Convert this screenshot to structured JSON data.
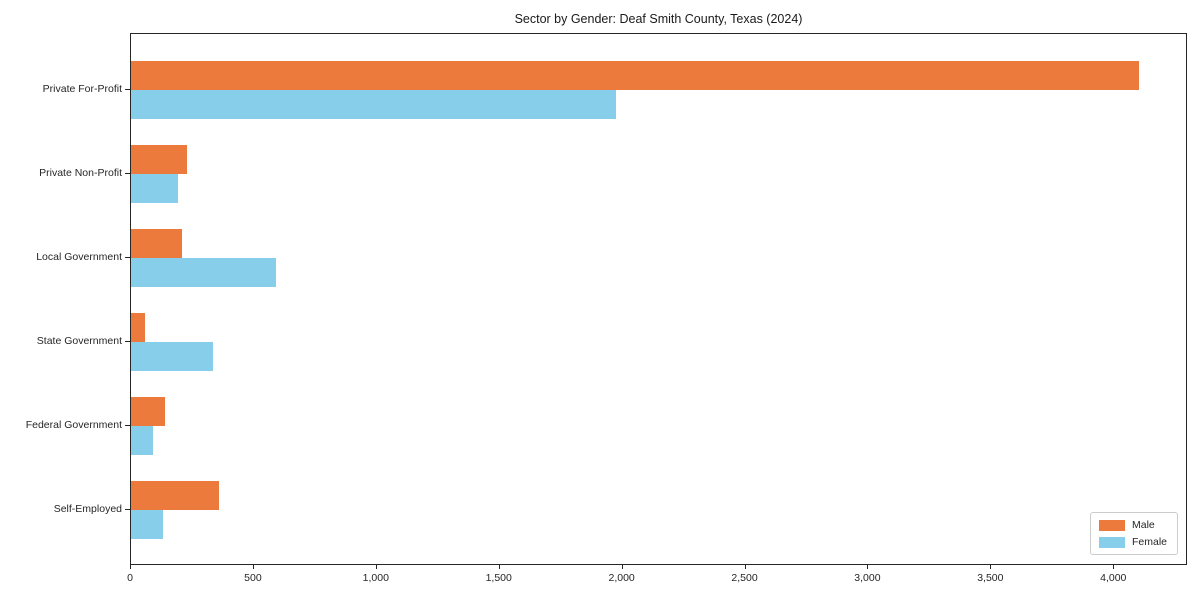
{
  "title": "Sector by Gender: Deaf Smith County, Texas (2024)",
  "colors": {
    "male": "#eb7a3c",
    "female": "#87ceeb",
    "spine": "#262626",
    "text": "#262626"
  },
  "legend": {
    "items": [
      {
        "label": "Male",
        "color": "#eb7a3c"
      },
      {
        "label": "Female",
        "color": "#87ceeb"
      }
    ],
    "position": "lower right"
  },
  "chart_data": {
    "type": "bar",
    "orientation": "horizontal",
    "title": "Sector by Gender: Deaf Smith County, Texas (2024)",
    "categories": [
      "Private For-Profit",
      "Private Non-Profit",
      "Local Government",
      "State Government",
      "Federal Government",
      "Self-Employed"
    ],
    "series": [
      {
        "name": "Male",
        "color": "#eb7a3c",
        "values": [
          4100,
          228,
          208,
          57,
          139,
          358
        ]
      },
      {
        "name": "Female",
        "color": "#87ceeb",
        "values": [
          1975,
          190,
          588,
          335,
          89,
          131
        ]
      }
    ],
    "xlabel": "",
    "ylabel": "",
    "xlim": [
      0,
      4300
    ],
    "xticks": [
      0,
      500,
      1000,
      1500,
      2000,
      2500,
      3000,
      3500,
      4000
    ],
    "xtick_labels": [
      "0",
      "500",
      "1,000",
      "1,500",
      "2,000",
      "2,500",
      "3,000",
      "3,500",
      "4,000"
    ],
    "grid": false,
    "legend_position": "lower right"
  }
}
